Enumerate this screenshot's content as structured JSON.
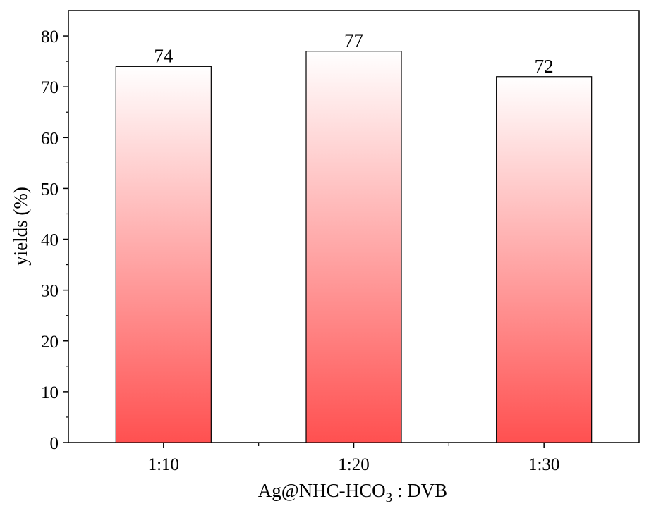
{
  "chart_data": {
    "type": "bar",
    "categories": [
      "1:10",
      "1:20",
      "1:30"
    ],
    "values": [
      74,
      77,
      72
    ],
    "data_labels": [
      "74",
      "77",
      "72"
    ],
    "title": "",
    "xlabel": "Ag@NHC-HCO",
    "xlabel_subscript": "3",
    "xlabel_suffix": " : DVB",
    "ylabel": "yields (%)",
    "ylim": [
      0,
      85
    ],
    "yticks": [
      "0",
      "10",
      "20",
      "30",
      "40",
      "50",
      "60",
      "70",
      "80"
    ],
    "grid": false,
    "legend": "none",
    "bar_gradient_top": "#ffffff",
    "bar_gradient_bottom": "#ff5050",
    "bar_edge_color": "#000000"
  }
}
